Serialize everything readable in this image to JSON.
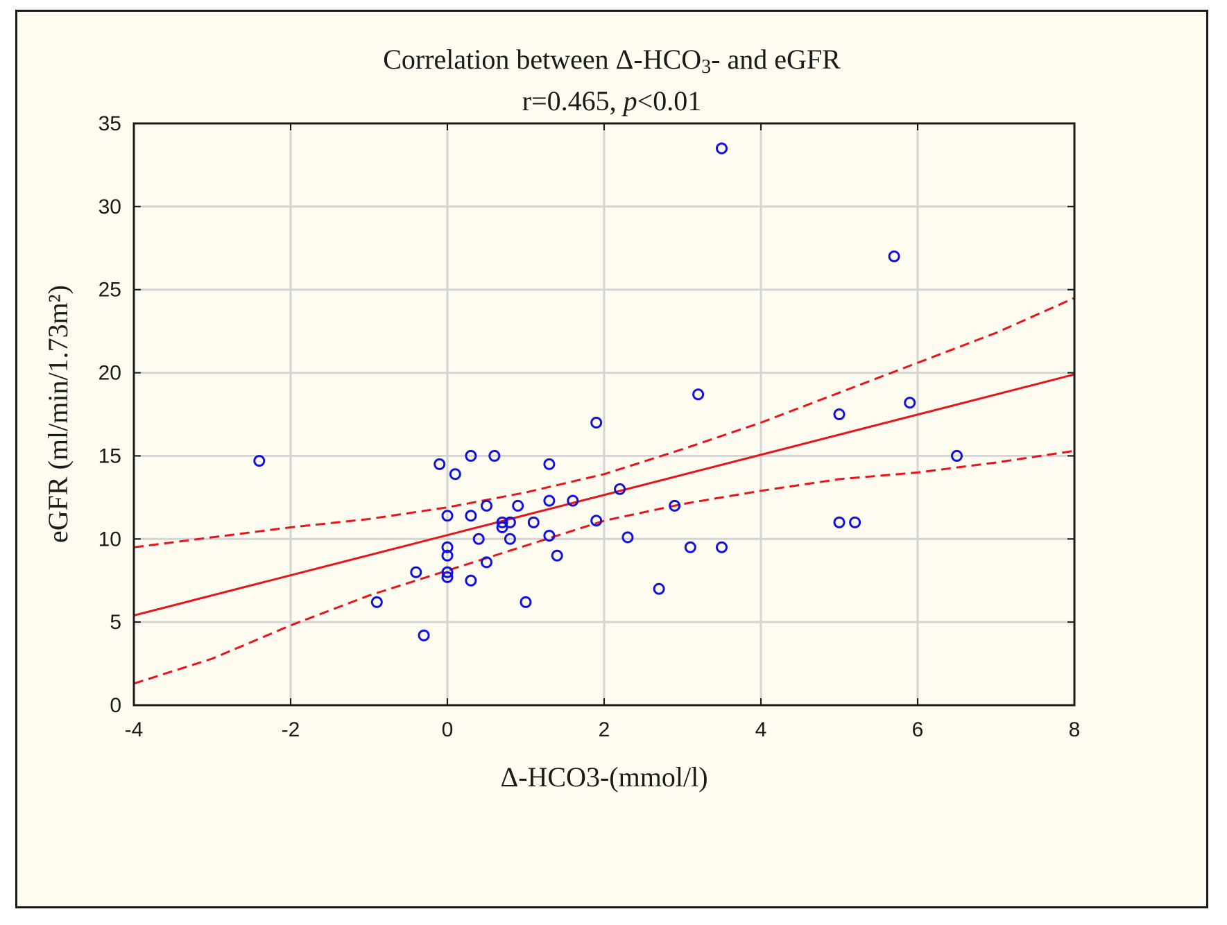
{
  "chart_data": {
    "type": "scatter",
    "title": "Correlation between Δ-HCO3- and eGFR",
    "title_parts": {
      "prefix": "Correlation between Δ-HCO",
      "subscript": "3",
      "suffix": "- and eGFR"
    },
    "subtitle": "r=0.465, p<0.01",
    "subtitle_parts": {
      "prefix": "r=0.465, ",
      "italic": "p",
      "suffix": "<0.01"
    },
    "xlabel": "Δ-HCO3-(mmol/l)",
    "ylabel": "eGFR (ml/min/1.73m²)",
    "xlim": [
      -4,
      8
    ],
    "ylim": [
      0,
      35
    ],
    "xticks": [
      -4,
      -2,
      0,
      2,
      4,
      6,
      8
    ],
    "yticks": [
      0,
      5,
      10,
      15,
      20,
      25,
      30,
      35
    ],
    "grid": true,
    "series": [
      {
        "name": "patients",
        "marker": "circle-open",
        "color": "#1010e0",
        "points": [
          [
            -2.4,
            14.7
          ],
          [
            -0.9,
            6.2
          ],
          [
            -0.4,
            8.0
          ],
          [
            -0.3,
            4.2
          ],
          [
            -0.1,
            14.5
          ],
          [
            0.0,
            11.4
          ],
          [
            0.0,
            9.5
          ],
          [
            0.0,
            9.0
          ],
          [
            0.0,
            8.0
          ],
          [
            0.0,
            7.7
          ],
          [
            0.1,
            13.9
          ],
          [
            0.3,
            15.0
          ],
          [
            0.3,
            11.4
          ],
          [
            0.3,
            7.5
          ],
          [
            0.4,
            10.0
          ],
          [
            0.5,
            12.0
          ],
          [
            0.5,
            8.6
          ],
          [
            0.6,
            15.0
          ],
          [
            0.7,
            11.0
          ],
          [
            0.7,
            10.7
          ],
          [
            0.8,
            11.0
          ],
          [
            0.8,
            10.0
          ],
          [
            0.9,
            12.0
          ],
          [
            1.0,
            6.2
          ],
          [
            1.1,
            11.0
          ],
          [
            1.3,
            14.5
          ],
          [
            1.3,
            12.3
          ],
          [
            1.3,
            10.2
          ],
          [
            1.4,
            9.0
          ],
          [
            1.6,
            12.3
          ],
          [
            1.9,
            17.0
          ],
          [
            1.9,
            11.1
          ],
          [
            2.2,
            13.0
          ],
          [
            2.3,
            10.1
          ],
          [
            2.7,
            7.0
          ],
          [
            2.9,
            12.0
          ],
          [
            3.1,
            9.5
          ],
          [
            3.2,
            18.7
          ],
          [
            3.5,
            33.5
          ],
          [
            3.5,
            9.5
          ],
          [
            5.0,
            17.5
          ],
          [
            5.0,
            11.0
          ],
          [
            5.2,
            11.0
          ],
          [
            5.7,
            27.0
          ],
          [
            5.9,
            18.2
          ],
          [
            6.5,
            15.0
          ]
        ]
      }
    ],
    "regression": {
      "color": "#e8141c",
      "line": [
        [
          -4,
          5.4
        ],
        [
          8,
          19.9
        ]
      ],
      "ci_upper": [
        [
          -4,
          9.5
        ],
        [
          -3,
          10.1
        ],
        [
          -2,
          10.7
        ],
        [
          -1,
          11.2
        ],
        [
          0,
          11.9
        ],
        [
          1,
          12.8
        ],
        [
          2,
          13.9
        ],
        [
          3,
          15.4
        ],
        [
          4,
          17.0
        ],
        [
          5,
          18.8
        ],
        [
          6,
          20.6
        ],
        [
          7,
          22.4
        ],
        [
          8,
          24.5
        ]
      ],
      "ci_lower": [
        [
          -4,
          1.3
        ],
        [
          -3,
          2.8
        ],
        [
          -2,
          4.8
        ],
        [
          -1,
          6.6
        ],
        [
          0,
          8.1
        ],
        [
          1,
          9.6
        ],
        [
          2,
          11.1
        ],
        [
          3,
          12.1
        ],
        [
          4,
          12.9
        ],
        [
          5,
          13.6
        ],
        [
          6,
          14.0
        ],
        [
          7,
          14.6
        ],
        [
          8,
          15.3
        ]
      ]
    }
  }
}
